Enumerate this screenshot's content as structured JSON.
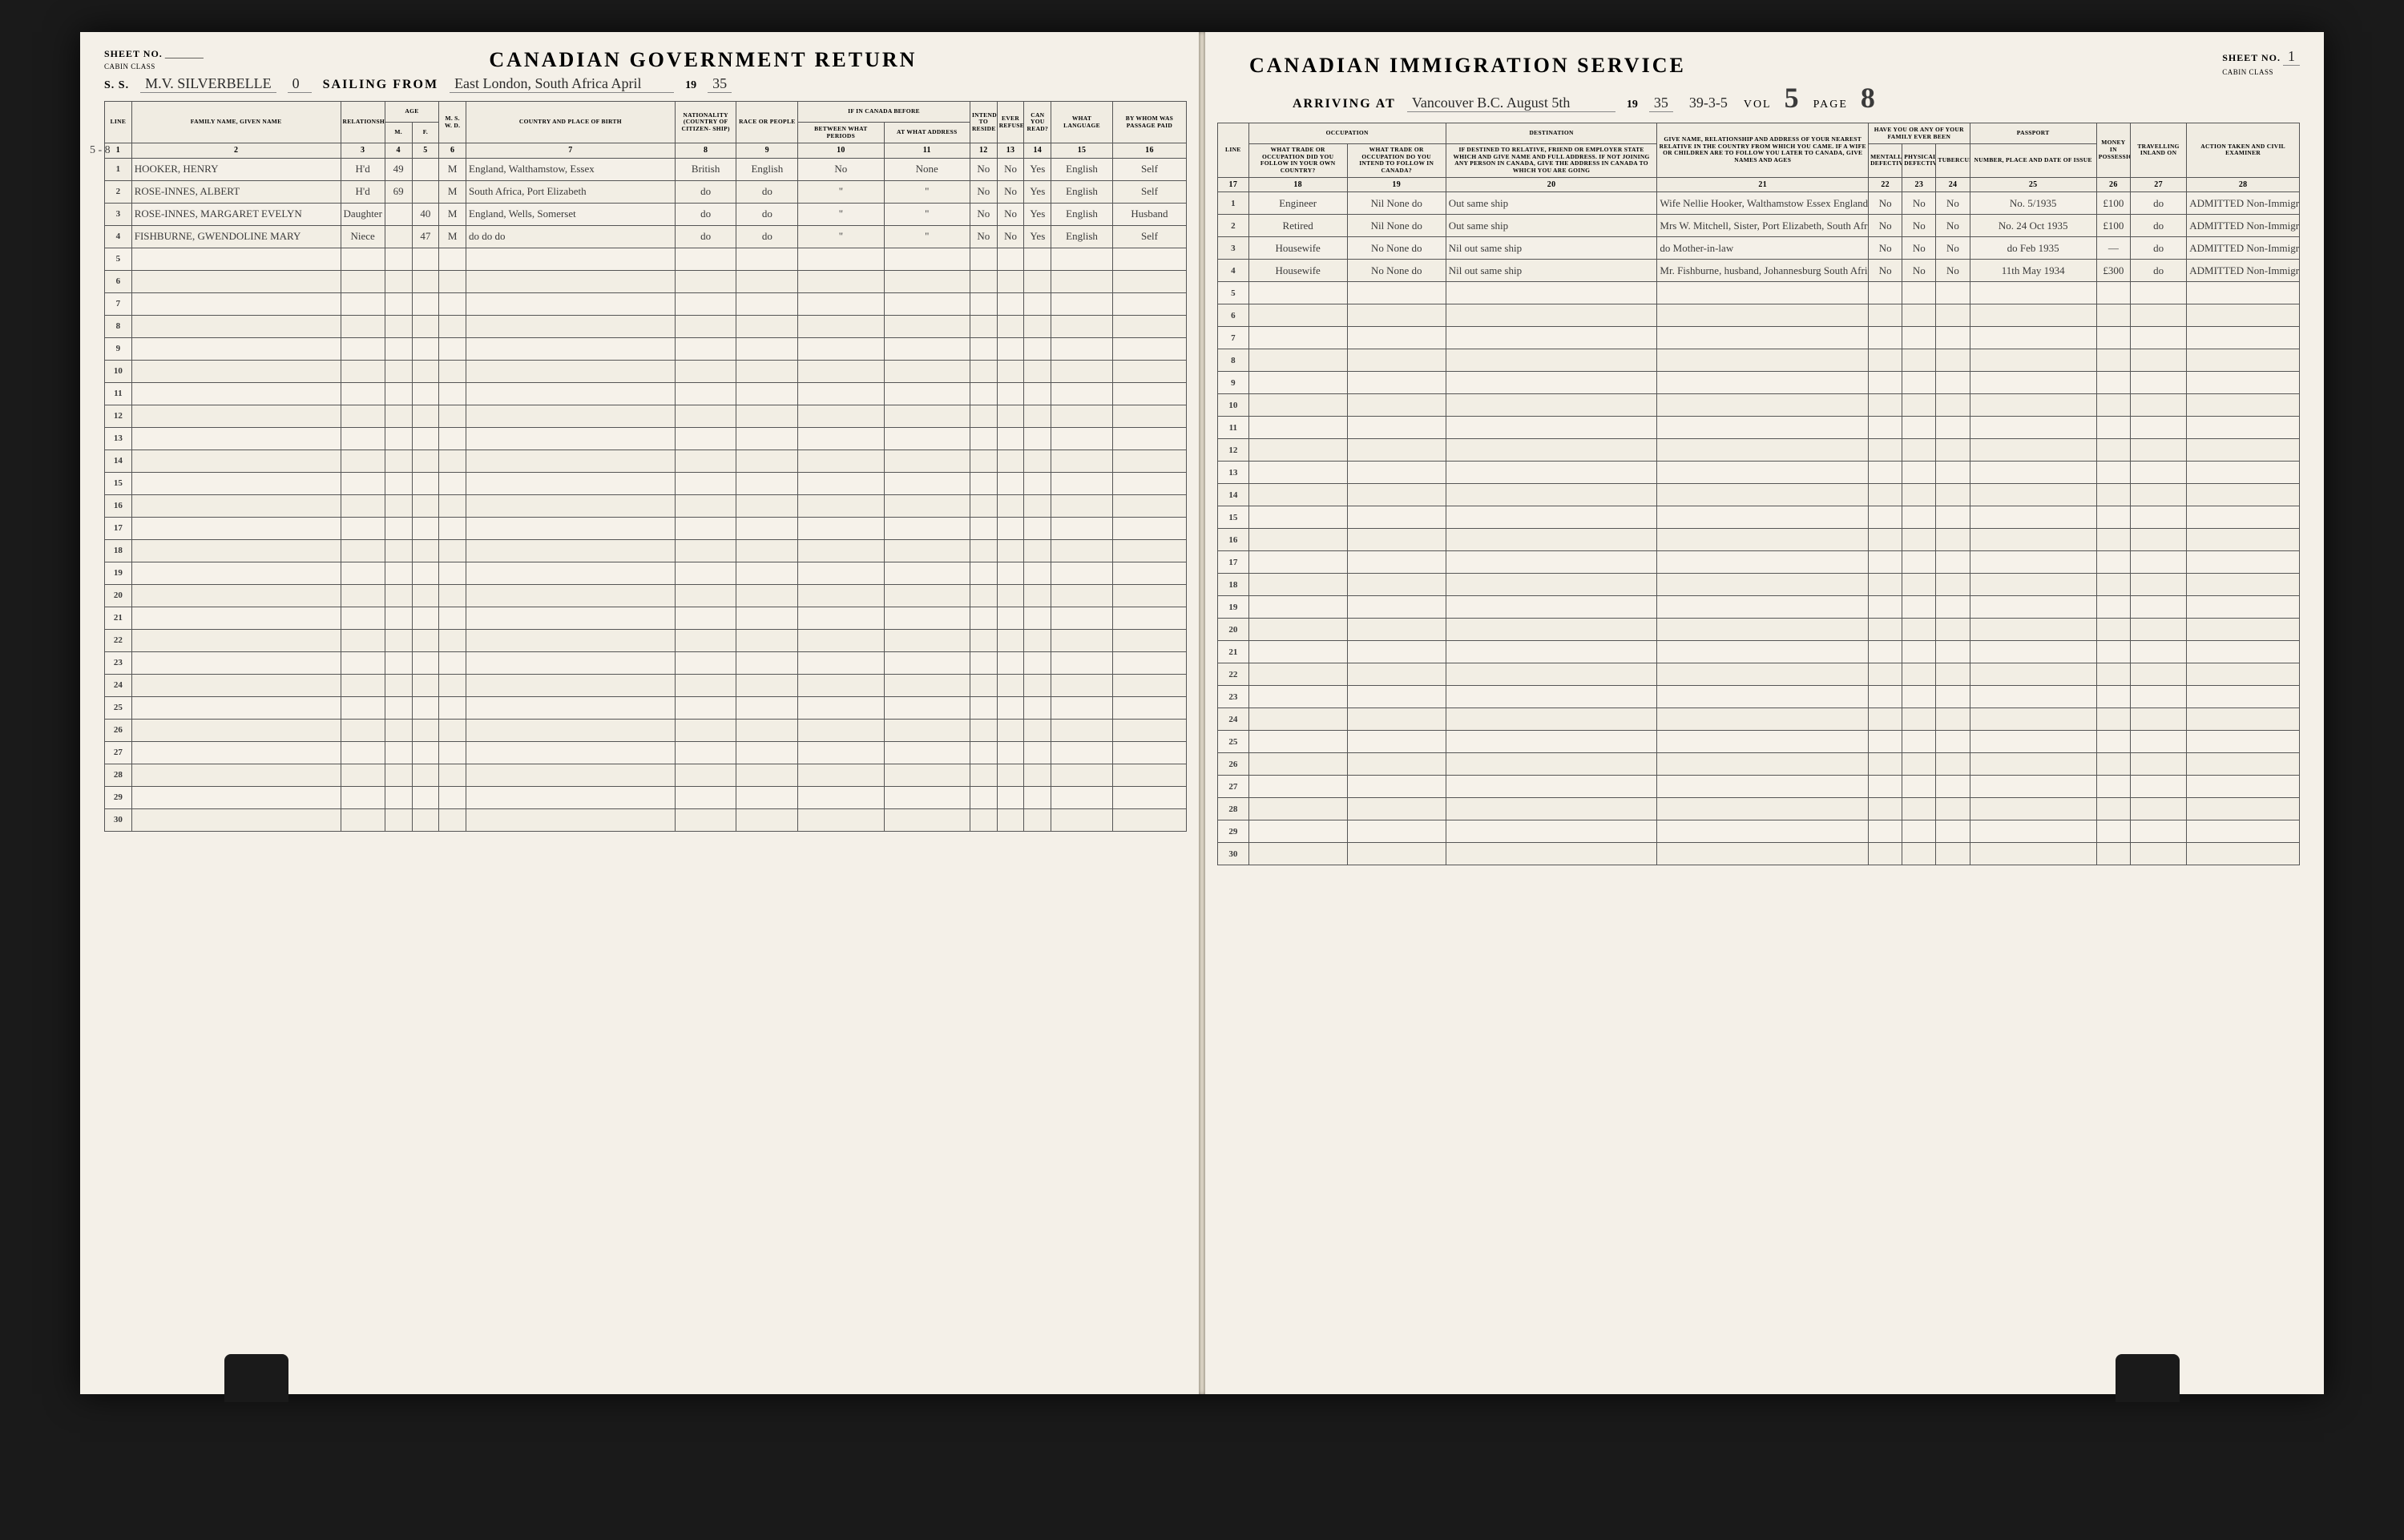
{
  "left": {
    "sheet_no_label": "SHEET NO.",
    "cabin_class": "CABIN CLASS",
    "title": "CANADIAN GOVERNMENT RETURN",
    "ss_label": "S. S.",
    "ship_name": "M.V. SILVERBELLE",
    "voyage_no": "0",
    "sailing_label": "SAILING FROM",
    "sailing_port": "East London, South Africa  April",
    "year_prefix": "19",
    "year_suffix": "35",
    "edge_note": "5 - 8",
    "headers": {
      "line": "LINE",
      "name": "FAMILY NAME, GIVEN NAME",
      "relationship": "RELATIONSHIP",
      "age_group": "AGE",
      "age_m": "M.",
      "age_f": "F.",
      "ms": "M. S. W. D.",
      "country": "COUNTRY AND PLACE OF BIRTH",
      "nationality": "NATIONALITY (COUNTRY OF CITIZEN- SHIP)",
      "race": "RACE OR PEOPLE",
      "if_canada": "IF IN CANADA BEFORE",
      "between": "BETWEEN WHAT PERIODS",
      "at_what": "AT WHAT ADDRESS",
      "intend": "INTEND TO RESIDE",
      "ever_refused": "EVER REFUSED",
      "read": "CAN YOU READ?",
      "language": "WHAT LANGUAGE",
      "passage": "BY WHOM WAS PASSAGE PAID"
    },
    "colnums": [
      "1",
      "2",
      "3",
      "4",
      "5",
      "6",
      "7",
      "8",
      "9",
      "10",
      "11",
      "12",
      "13",
      "14",
      "15",
      "16"
    ],
    "rows": [
      {
        "n": "1",
        "name": "HOOKER, HENRY",
        "rel": "H'd",
        "m": "49",
        "f": "",
        "ms": "M",
        "birth": "England, Walthamstow, Essex",
        "nat": "British",
        "race": "English",
        "between": "No",
        "addr": "None",
        "c12": "No",
        "c13": "No",
        "c14": "Yes",
        "lang": "English",
        "paid": "Self"
      },
      {
        "n": "2",
        "name": "ROSE-INNES, ALBERT",
        "rel": "H'd",
        "m": "69",
        "f": "",
        "ms": "M",
        "birth": "South Africa, Port Elizabeth",
        "nat": "do",
        "race": "do",
        "between": "\"",
        "addr": "\"",
        "c12": "No",
        "c13": "No",
        "c14": "Yes",
        "lang": "English",
        "paid": "Self"
      },
      {
        "n": "3",
        "name": "ROSE-INNES, MARGARET EVELYN",
        "rel": "Daughter",
        "m": "",
        "f": "40",
        "ms": "M",
        "birth": "England, Wells, Somerset",
        "nat": "do",
        "race": "do",
        "between": "\"",
        "addr": "\"",
        "c12": "No",
        "c13": "No",
        "c14": "Yes",
        "lang": "English",
        "paid": "Husband"
      },
      {
        "n": "4",
        "name": "FISHBURNE, GWENDOLINE MARY",
        "rel": "Niece",
        "m": "",
        "f": "47",
        "ms": "M",
        "birth": "do   do   do",
        "nat": "do",
        "race": "do",
        "between": "\"",
        "addr": "\"",
        "c12": "No",
        "c13": "No",
        "c14": "Yes",
        "lang": "English",
        "paid": "Self"
      }
    ]
  },
  "right": {
    "title": "CANADIAN IMMIGRATION SERVICE",
    "sheet_no_label": "SHEET NO.",
    "sheet_no_value": "1",
    "cabin_class": "CABIN CLASS",
    "arriving_label": "ARRIVING AT",
    "arriving_port": "Vancouver B.C. August 5th",
    "year_prefix": "19",
    "year_suffix": "35",
    "ref_number": "39-3-5",
    "vol_label": "VOL",
    "vol_value": "5",
    "page_label": "PAGE",
    "page_value": "8",
    "headers": {
      "line": "LINE",
      "occupation_group": "OCCUPATION",
      "occ_own": "WHAT TRADE OR OCCUPATION DID YOU FOLLOW IN YOUR OWN COUNTRY?",
      "occ_can": "WHAT TRADE OR OCCUPATION DO YOU INTEND TO FOLLOW IN CANADA?",
      "destination": "DESTINATION",
      "dest_detail": "IF DESTINED TO RELATIVE, FRIEND OR EMPLOYER STATE WHICH AND GIVE NAME AND FULL ADDRESS. IF NOT JOINING ANY PERSON IN CANADA, GIVE THE ADDRESS IN CANADA TO WHICH YOU ARE GOING",
      "nearest_rel": "GIVE NAME, RELATIONSHIP AND ADDRESS OF YOUR NEAREST RELATIVE IN THE COUNTRY FROM WHICH YOU CAME. IF A WIFE OR CHILDREN ARE TO FOLLOW YOU LATER TO CANADA, GIVE NAMES AND AGES",
      "ever_been": "HAVE YOU OR ANY OF YOUR FAMILY EVER BEEN",
      "mental": "MENTALLY DEFECTIVE",
      "physical": "PHYSICALLY DEFECTIVE",
      "tb": "TUBERCULAR",
      "passport_group": "PASSPORT",
      "passport": "NUMBER, PLACE AND DATE OF ISSUE",
      "money": "MONEY IN POSSESSION",
      "travel": "TRAVELLING INLAND ON",
      "action": "ACTION TAKEN AND CIVIL EXAMINER"
    },
    "colnums": [
      "17",
      "18",
      "19",
      "20",
      "21",
      "22",
      "23",
      "24",
      "25",
      "26",
      "27",
      "28"
    ],
    "rows": [
      {
        "n": "1",
        "own": "Engineer",
        "can": "Nil None do",
        "dest": "Out same ship",
        "rel": "Wife Nellie Hooker, Walthamstow Essex England",
        "c22": "No",
        "c23": "No",
        "c24": "No",
        "pass": "No. 5/1935",
        "money": "£100",
        "travel": "do",
        "action": "ADMITTED Non-Immigrant"
      },
      {
        "n": "2",
        "own": "Retired",
        "can": "Nil None do",
        "dest": "Out same ship",
        "rel": "Mrs W. Mitchell, Sister, Port Elizabeth, South Africa",
        "c22": "No",
        "c23": "No",
        "c24": "No",
        "pass": "No. 24 Oct 1935",
        "money": "£100",
        "travel": "do",
        "action": "ADMITTED Non-Immigrant"
      },
      {
        "n": "3",
        "own": "Housewife",
        "can": "No None do",
        "dest": "Nil  out same ship",
        "rel": "do   Mother-in-law",
        "c22": "No",
        "c23": "No",
        "c24": "No",
        "pass": "do Feb 1935",
        "money": "—",
        "travel": "do",
        "action": "ADMITTED Non-Immigrant"
      },
      {
        "n": "4",
        "own": "Housewife",
        "can": "No None do",
        "dest": "Nil  out same ship",
        "rel": "Mr. Fishburne, husband, Johannesburg South Africa",
        "c22": "No",
        "c23": "No",
        "c24": "No",
        "pass": "11th May 1934",
        "money": "£300",
        "travel": "do",
        "action": "ADMITTED Non-Immigrant"
      }
    ]
  },
  "total_rows": 30,
  "background_color": "#1a1a1a",
  "paper_color": "#f4f0e8"
}
